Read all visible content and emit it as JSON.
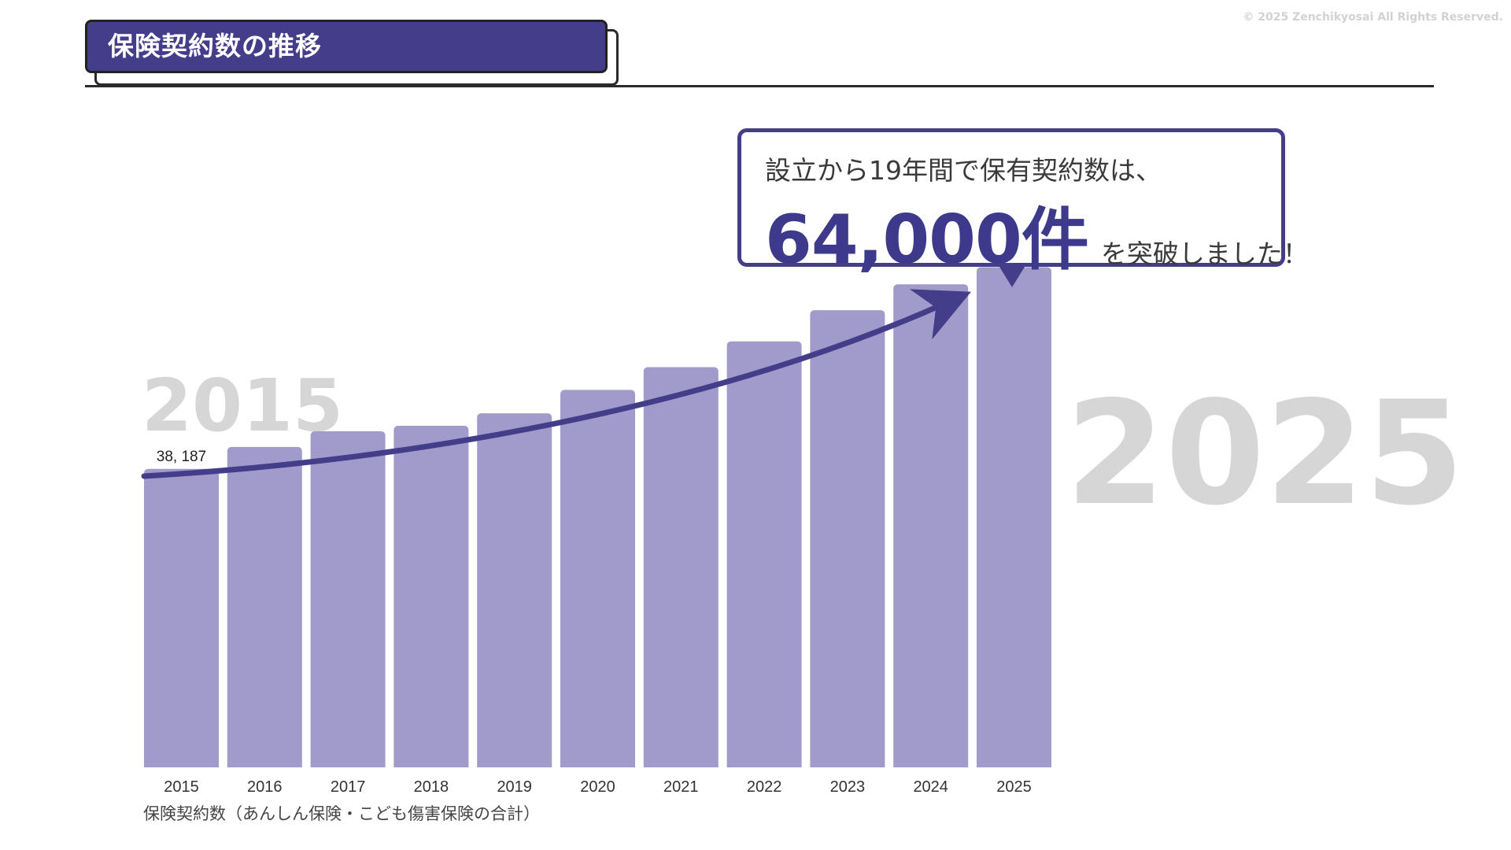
{
  "header": {
    "title": "保険契約数の推移",
    "copyright": "© 2025 Zenchikyosai All Rights Reserved."
  },
  "decor": {
    "year_start": "2015",
    "year_end": "2025"
  },
  "callout": {
    "line1": "設立から19年間で保有契約数は、",
    "highlight": "64,000件",
    "suffix": "を突破しました！"
  },
  "caption": "保険契約数（あんしん保険・こども傷害保険の合計）",
  "colors": {
    "bar": "#a09bcb",
    "accent": "#433d8a",
    "decor_year": "#d6d6d6"
  },
  "chart_data": {
    "type": "bar",
    "categories": [
      "2015",
      "2016",
      "2017",
      "2018",
      "2019",
      "2020",
      "2021",
      "2022",
      "2023",
      "2024",
      "2025"
    ],
    "series": [
      {
        "values": [
          38187,
          41000,
          43000,
          43700,
          45300,
          48300,
          51200,
          54500,
          58500,
          61800,
          64000
        ]
      }
    ],
    "data_labels": {
      "0": "38, 187",
      "10": "64, 000"
    },
    "ylim": [
      0,
      72000
    ],
    "grid": false,
    "legend": "none",
    "trend_arrow": true
  }
}
